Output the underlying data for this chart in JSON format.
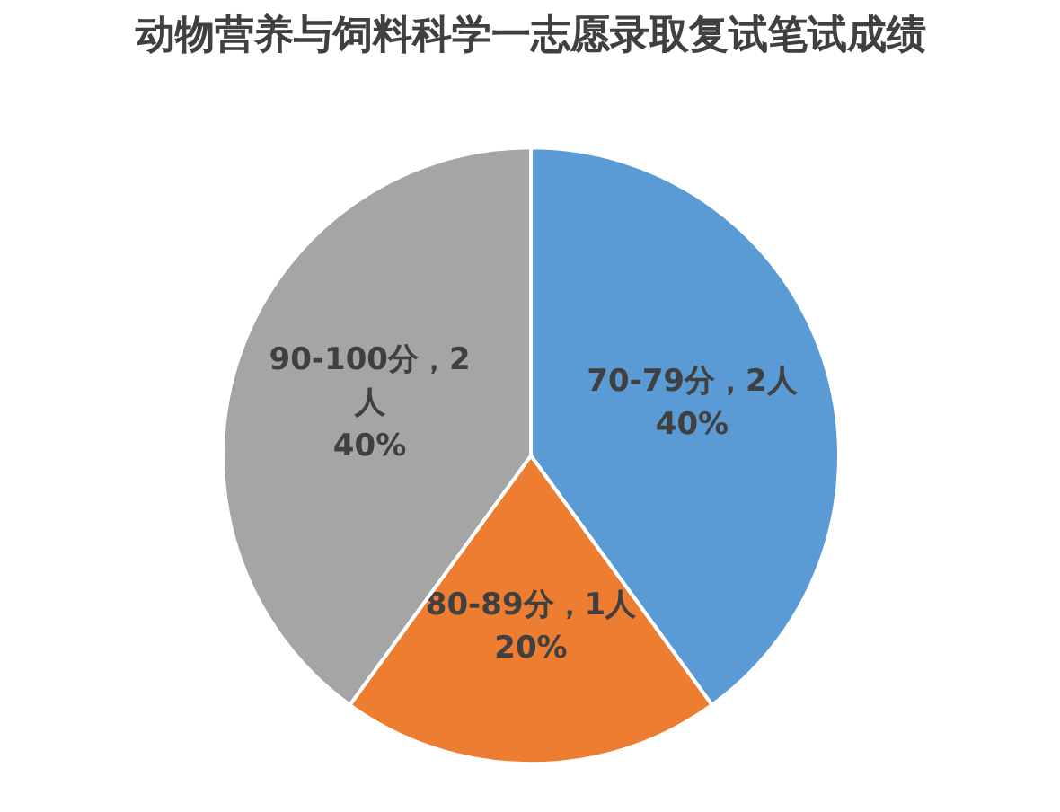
{
  "chart_data": {
    "type": "pie",
    "title": "动物营养与饲料科学一志愿录取复试笔试成绩",
    "categories": [
      "70-79分",
      "80-89分",
      "90-100分"
    ],
    "values": [
      2,
      1,
      2
    ],
    "colors": [
      "#5b9bd5",
      "#ed7d31",
      "#a5a5a5"
    ],
    "value_labels": [
      "，2人\n40%",
      "，1人\n20%",
      "，2\n人\n40%"
    ],
    "legend": false
  }
}
